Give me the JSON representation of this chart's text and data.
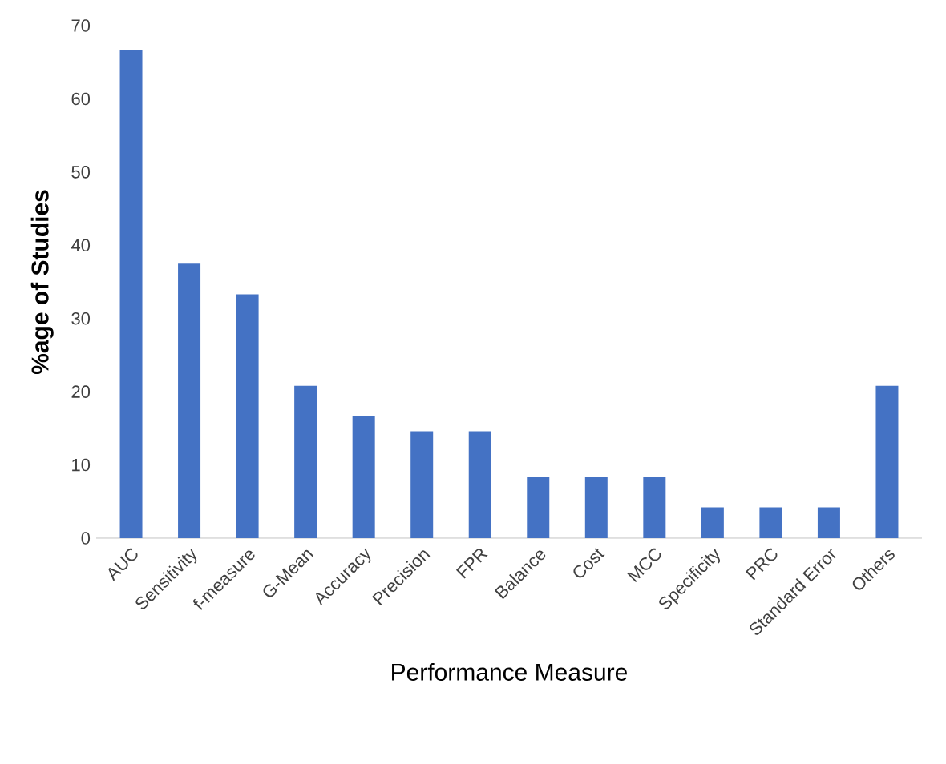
{
  "chart_data": {
    "type": "bar",
    "xlabel": "Performance Measure",
    "ylabel": "%age of Studies",
    "categories": [
      "AUC",
      "Sensitivity",
      "f-measure",
      "G-Mean",
      "Accuracy",
      "Precision",
      "FPR",
      "Balance",
      "Cost",
      "MCC",
      "Specificity",
      "PRC",
      "Standard Error",
      "Others"
    ],
    "values": [
      66.7,
      37.5,
      33.3,
      20.8,
      16.7,
      14.6,
      14.6,
      8.3,
      8.3,
      8.3,
      4.2,
      4.2,
      4.2,
      20.8
    ],
    "color": "#4472c4",
    "ylim": [
      0,
      70
    ],
    "yticks": [
      0,
      10,
      20,
      30,
      40,
      50,
      60,
      70
    ],
    "grid": false
  }
}
